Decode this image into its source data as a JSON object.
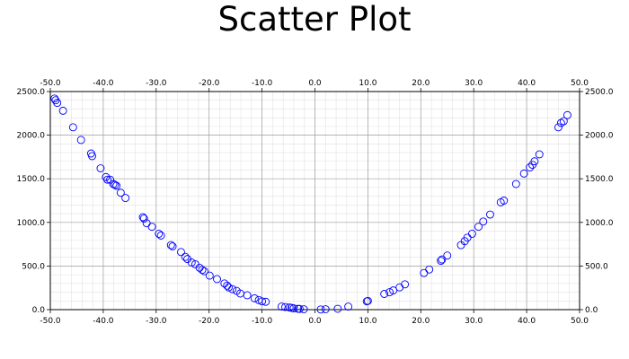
{
  "chart_data": {
    "type": "scatter",
    "title": "Scatter Plot",
    "xlabel": "",
    "ylabel": "",
    "xlim": [
      -50,
      50
    ],
    "ylim": [
      0,
      2500
    ],
    "x_ticks": [
      "-50.0",
      "-40.0",
      "-30.0",
      "-20.0",
      "-10.0",
      "0.0",
      "10.0",
      "20.0",
      "30.0",
      "40.0",
      "50.0"
    ],
    "y_ticks": [
      "0.0",
      "500.0",
      "1000.0",
      "1500.0",
      "2000.0",
      "2500.0"
    ],
    "x_tick_values": [
      -50,
      -40,
      -30,
      -20,
      -10,
      0,
      10,
      20,
      30,
      40,
      50
    ],
    "y_tick_values": [
      0,
      500,
      1000,
      1500,
      2000,
      2500
    ],
    "grid": true,
    "minor_grid": true,
    "ticks_on_all_sides": true,
    "legend": "none",
    "marker": "hollow circle",
    "marker_color": "#0000ff",
    "series": [
      {
        "x": [
          -49.2,
          -49.0,
          -48.7,
          -47.6,
          -45.7,
          -44.2,
          -42.3,
          -42.1,
          -40.5,
          -39.5,
          -39.2,
          -38.7,
          -38.1,
          -37.8,
          -37.5,
          -36.7,
          -35.8,
          -32.5,
          -32.3,
          -31.8,
          -30.8,
          -29.5,
          -29.1,
          -27.2,
          -26.9,
          -25.3,
          -24.5,
          -24.1,
          -23.3,
          -22.6,
          -21.8,
          -21.3,
          -20.9,
          -19.9,
          -18.5,
          -17.1,
          -16.6,
          -16.3,
          -15.6,
          -14.8,
          -14.1,
          -12.8,
          -11.4,
          -10.6,
          -10.0,
          -9.3,
          -6.3,
          -5.6,
          -4.8,
          -4.4,
          -4.0,
          -3.2,
          -2.9,
          -2.1,
          1.1,
          2.0,
          4.3,
          6.3,
          9.8,
          10.0,
          13.1,
          14.1,
          14.8,
          16.0,
          17.0,
          20.6,
          21.6,
          23.8,
          24.0,
          25.0,
          27.6,
          28.3,
          28.8,
          29.7,
          30.9,
          31.8,
          33.1,
          35.1,
          35.7,
          38.0,
          39.5,
          40.6,
          41.1,
          41.5,
          42.4,
          46.0,
          46.5,
          47.0,
          47.7
        ],
        "y": [
          2420,
          2400,
          2370,
          2280,
          2090,
          1945,
          1790,
          1760,
          1620,
          1520,
          1490,
          1490,
          1440,
          1430,
          1420,
          1340,
          1280,
          1060,
          1045,
          990,
          950,
          870,
          850,
          740,
          725,
          660,
          605,
          580,
          540,
          520,
          480,
          455,
          440,
          390,
          350,
          300,
          275,
          255,
          235,
          215,
          185,
          165,
          130,
          110,
          95,
          90,
          35,
          30,
          25,
          20,
          15,
          10,
          8,
          5,
          2,
          5,
          10,
          35,
          95,
          100,
          180,
          200,
          220,
          255,
          290,
          420,
          460,
          560,
          575,
          620,
          740,
          785,
          825,
          870,
          950,
          1010,
          1090,
          1230,
          1250,
          1440,
          1560,
          1630,
          1660,
          1700,
          1780,
          2090,
          2140,
          2160,
          2230
        ]
      }
    ]
  }
}
